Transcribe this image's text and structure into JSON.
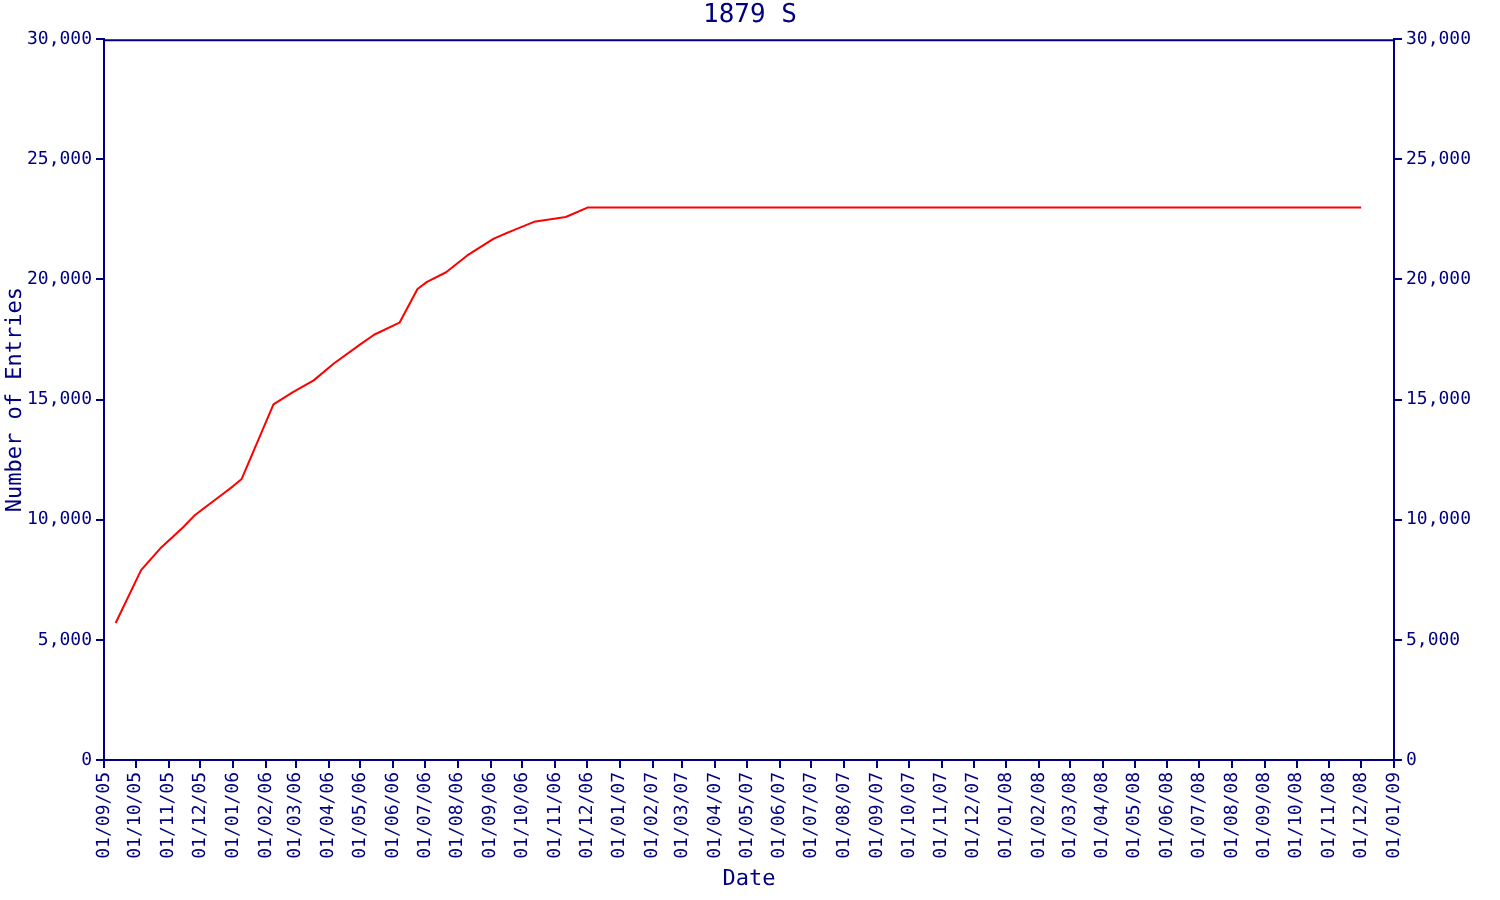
{
  "chart_data": {
    "type": "line",
    "title": "1879 S",
    "xlabel": "Date",
    "ylabel": "Number of Entries",
    "x": [
      "2005-09-12",
      "2005-10-06",
      "2005-10-24",
      "2005-11-15",
      "2005-11-26",
      "2005-12-20",
      "2006-01-01",
      "2006-01-09",
      "2006-02-08",
      "2006-02-26",
      "2006-03-18",
      "2006-04-06",
      "2006-05-01",
      "2006-05-14",
      "2006-06-07",
      "2006-06-24",
      "2006-07-03",
      "2006-07-21",
      "2006-08-10",
      "2006-09-04",
      "2006-09-20",
      "2006-10-12",
      "2006-11-11",
      "2006-12-02",
      "2008-12-01"
    ],
    "series": [
      {
        "color": "#ff0000",
        "values": [
          5700,
          7900,
          8800,
          9700,
          10200,
          11000,
          11400,
          11700,
          14800,
          15300,
          15800,
          16500,
          17300,
          17700,
          18200,
          19600,
          19900,
          20300,
          21000,
          21700,
          22000,
          22400,
          22600,
          23000,
          23000
        ]
      }
    ],
    "xlim": [
      "2005-09-01",
      "2009-01-01"
    ],
    "xticks": [
      {
        "value": "2005-09-01",
        "label": "01/09/05"
      },
      {
        "value": "2005-10-01",
        "label": "01/10/05"
      },
      {
        "value": "2005-11-01",
        "label": "01/11/05"
      },
      {
        "value": "2005-12-01",
        "label": "01/12/05"
      },
      {
        "value": "2006-01-01",
        "label": "01/01/06"
      },
      {
        "value": "2006-02-01",
        "label": "01/02/06"
      },
      {
        "value": "2006-03-01",
        "label": "01/03/06"
      },
      {
        "value": "2006-04-01",
        "label": "01/04/06"
      },
      {
        "value": "2006-05-01",
        "label": "01/05/06"
      },
      {
        "value": "2006-06-01",
        "label": "01/06/06"
      },
      {
        "value": "2006-07-01",
        "label": "01/07/06"
      },
      {
        "value": "2006-08-01",
        "label": "01/08/06"
      },
      {
        "value": "2006-09-01",
        "label": "01/09/06"
      },
      {
        "value": "2006-10-01",
        "label": "01/10/06"
      },
      {
        "value": "2006-11-01",
        "label": "01/11/06"
      },
      {
        "value": "2006-12-01",
        "label": "01/12/06"
      },
      {
        "value": "2007-01-01",
        "label": "01/01/07"
      },
      {
        "value": "2007-02-01",
        "label": "01/02/07"
      },
      {
        "value": "2007-03-01",
        "label": "01/03/07"
      },
      {
        "value": "2007-04-01",
        "label": "01/04/07"
      },
      {
        "value": "2007-05-01",
        "label": "01/05/07"
      },
      {
        "value": "2007-06-01",
        "label": "01/06/07"
      },
      {
        "value": "2007-07-01",
        "label": "01/07/07"
      },
      {
        "value": "2007-08-01",
        "label": "01/08/07"
      },
      {
        "value": "2007-09-01",
        "label": "01/09/07"
      },
      {
        "value": "2007-10-01",
        "label": "01/10/07"
      },
      {
        "value": "2007-11-01",
        "label": "01/11/07"
      },
      {
        "value": "2007-12-01",
        "label": "01/12/07"
      },
      {
        "value": "2008-01-01",
        "label": "01/01/08"
      },
      {
        "value": "2008-02-01",
        "label": "01/02/08"
      },
      {
        "value": "2008-03-01",
        "label": "01/03/08"
      },
      {
        "value": "2008-04-01",
        "label": "01/04/08"
      },
      {
        "value": "2008-05-01",
        "label": "01/05/08"
      },
      {
        "value": "2008-06-01",
        "label": "01/06/08"
      },
      {
        "value": "2008-07-01",
        "label": "01/07/08"
      },
      {
        "value": "2008-08-01",
        "label": "01/08/08"
      },
      {
        "value": "2008-09-01",
        "label": "01/09/08"
      },
      {
        "value": "2008-10-01",
        "label": "01/10/08"
      },
      {
        "value": "2008-11-01",
        "label": "01/11/08"
      },
      {
        "value": "2008-12-01",
        "label": "01/12/08"
      },
      {
        "value": "2009-01-01",
        "label": "01/01/09"
      }
    ],
    "ylim": [
      0,
      30000
    ],
    "yticks": [
      0,
      {
        "value": 5000,
        "label": "5,000"
      },
      {
        "value": 10000,
        "label": "10,000"
      },
      {
        "value": 15000,
        "label": "15,000"
      },
      {
        "value": 20000,
        "label": "20,000"
      },
      {
        "value": 25000,
        "label": "25,000"
      },
      {
        "value": 30000,
        "label": "30,000"
      }
    ],
    "y2lim": [
      0,
      30000
    ],
    "y2ticks": [
      0,
      {
        "value": 5000,
        "label": "5,000"
      },
      {
        "value": 10000,
        "label": "10,000"
      },
      {
        "value": 15000,
        "label": "15,000"
      },
      {
        "value": 20000,
        "label": "20,000"
      },
      {
        "value": 25000,
        "label": "25,000"
      },
      {
        "value": 30000,
        "label": "30,000"
      }
    ],
    "grid": false,
    "legend": false,
    "marker": "none",
    "line_style": "solid"
  }
}
